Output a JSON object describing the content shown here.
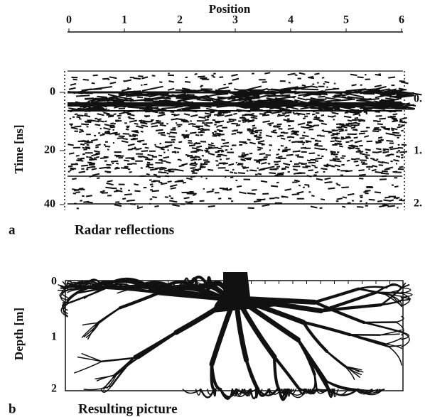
{
  "panel_a": {
    "top_axis_title": "Position",
    "top_ticks": [
      "0",
      "1",
      "2",
      "3",
      "4",
      "5",
      "6"
    ],
    "left_axis_title": "Time [ns]",
    "left_ticks": [
      "0",
      "20",
      "40"
    ],
    "right_ticks": [
      "0.",
      "1.",
      "2."
    ],
    "letter": "a",
    "caption": "Radar reflections"
  },
  "panel_b": {
    "left_axis_title": "Depth [m]",
    "left_ticks": [
      "0",
      "1",
      "2"
    ],
    "letter": "b",
    "caption": "Resulting picture"
  }
}
